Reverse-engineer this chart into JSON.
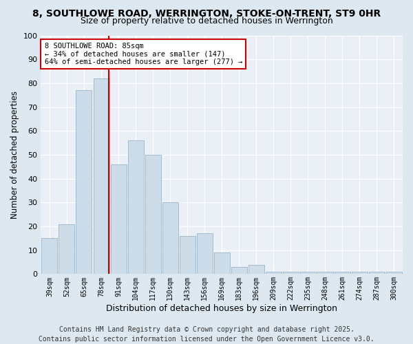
{
  "title": "8, SOUTHLOWE ROAD, WERRINGTON, STOKE-ON-TRENT, ST9 0HR",
  "subtitle": "Size of property relative to detached houses in Werrington",
  "xlabel": "Distribution of detached houses by size in Werrington",
  "ylabel": "Number of detached properties",
  "bar_labels": [
    "39sqm",
    "52sqm",
    "65sqm",
    "78sqm",
    "91sqm",
    "104sqm",
    "117sqm",
    "130sqm",
    "143sqm",
    "156sqm",
    "169sqm",
    "183sqm",
    "196sqm",
    "209sqm",
    "222sqm",
    "235sqm",
    "248sqm",
    "261sqm",
    "274sqm",
    "287sqm",
    "300sqm"
  ],
  "bar_values": [
    15,
    21,
    77,
    82,
    46,
    56,
    50,
    30,
    16,
    17,
    9,
    3,
    4,
    1,
    1,
    1,
    1,
    1,
    1,
    1,
    1
  ],
  "bar_color": "#ccdce8",
  "bar_edge_color": "#9ab4c8",
  "vline_color": "#cc0000",
  "annotation_text": "8 SOUTHLOWE ROAD: 85sqm\n← 34% of detached houses are smaller (147)\n64% of semi-detached houses are larger (277) →",
  "annotation_box_color": "#ffffff",
  "annotation_box_edge": "#cc0000",
  "bg_color": "#dde8f0",
  "plot_bg_color": "#eaf0f6",
  "grid_color": "#ffffff",
  "footer_line1": "Contains HM Land Registry data © Crown copyright and database right 2025.",
  "footer_line2": "Contains public sector information licensed under the Open Government Licence v3.0.",
  "title_fontsize": 10,
  "subtitle_fontsize": 9,
  "ylabel_fontsize": 8.5,
  "xlabel_fontsize": 9,
  "tick_fontsize": 7,
  "footer_fontsize": 7,
  "vline_pos": 3.45
}
